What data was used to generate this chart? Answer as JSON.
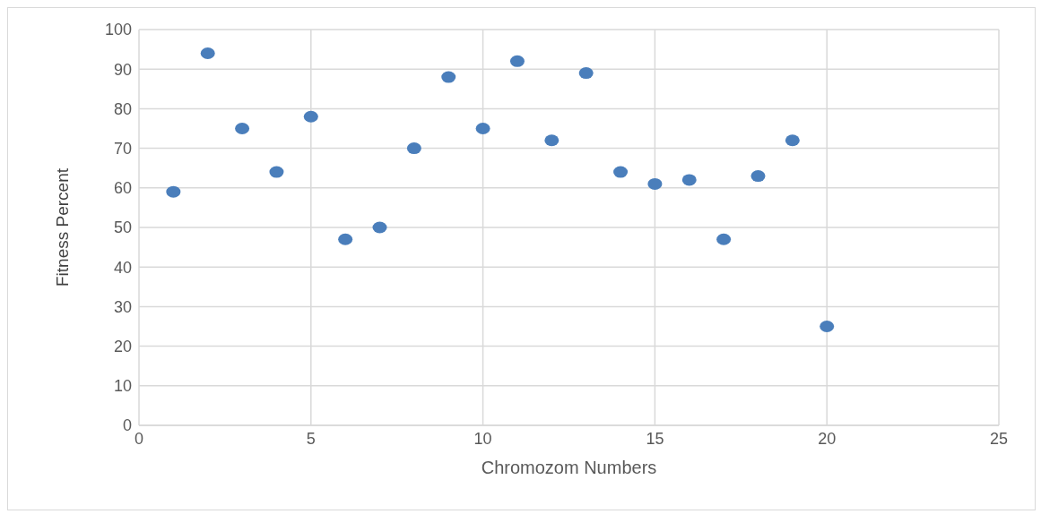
{
  "chart_data": {
    "type": "scatter",
    "xlabel": "Chromozom Numbers",
    "ylabel": "Fitness Percent",
    "x": [
      1,
      2,
      3,
      4,
      5,
      6,
      7,
      8,
      9,
      10,
      11,
      12,
      13,
      14,
      15,
      16,
      17,
      18,
      19,
      20
    ],
    "series": [
      {
        "color": "#4a7ebb",
        "values": [
          59,
          94,
          75,
          64,
          78,
          47,
          50,
          70,
          88,
          75,
          92,
          72,
          89,
          64,
          61,
          62,
          47,
          63,
          72,
          25
        ]
      }
    ],
    "xlim": [
      0,
      25
    ],
    "xticks": [
      0,
      5,
      10,
      15,
      20,
      25
    ],
    "ylim": [
      0,
      100
    ],
    "yticks": [
      0,
      10,
      20,
      30,
      40,
      50,
      60,
      70,
      80,
      90,
      100
    ],
    "grid": true,
    "marker": "circle",
    "legend": false
  }
}
